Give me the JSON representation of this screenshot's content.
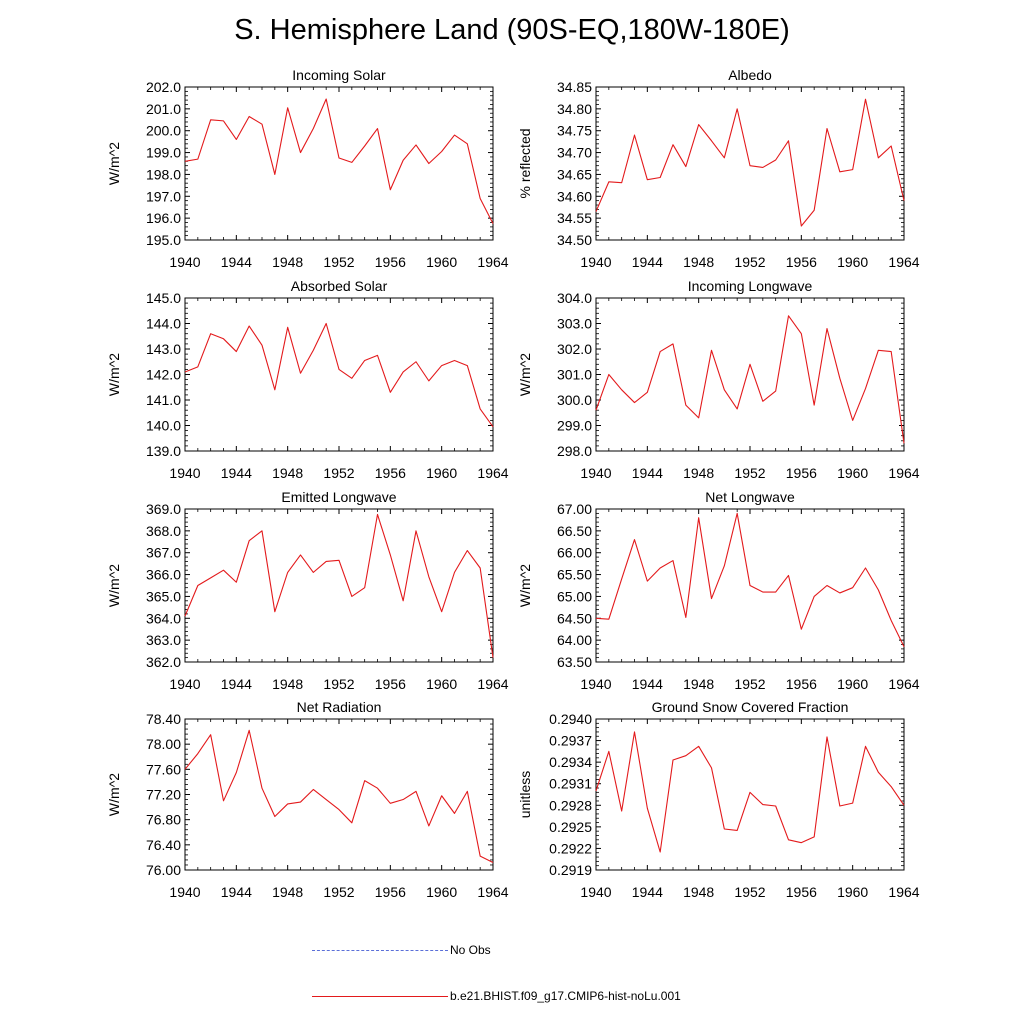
{
  "title": "S. Hemisphere Land (90S-EQ,180W-180E)",
  "legend": {
    "position": "bottom",
    "items": [
      {
        "label": "No Obs",
        "color": "#5a6fd8",
        "dash": "dashed"
      },
      {
        "label": "b.e21.BHIST.f09_g17.CMIP6-hist-noLu.001",
        "color": "#e31a1c",
        "dash": "solid"
      }
    ]
  },
  "chart_data": [
    {
      "type": "line",
      "title": "Incoming Solar",
      "ylabel": "W/m^2",
      "ylim": [
        195.0,
        202.0
      ],
      "yticks": [
        "195.0",
        "196.0",
        "197.0",
        "198.0",
        "199.0",
        "200.0",
        "201.0",
        "202.0"
      ],
      "xlim": [
        1940,
        1964
      ],
      "xticks": [
        "1940",
        "1944",
        "1948",
        "1952",
        "1956",
        "1960",
        "1964"
      ],
      "series": [
        {
          "color": "#e31a1c",
          "x": [
            1940,
            1941,
            1942,
            1943,
            1944,
            1945,
            1946,
            1947,
            1948,
            1949,
            1950,
            1951,
            1952,
            1953,
            1954,
            1955,
            1956,
            1957,
            1958,
            1959,
            1960,
            1961,
            1962,
            1963,
            1964
          ],
          "values": [
            198.6,
            198.7,
            200.5,
            200.45,
            199.6,
            200.65,
            200.3,
            198.0,
            201.05,
            199.0,
            200.1,
            201.45,
            198.75,
            198.55,
            199.3,
            200.1,
            197.3,
            198.65,
            199.35,
            198.5,
            199.05,
            199.8,
            199.4,
            196.9,
            195.75
          ]
        }
      ]
    },
    {
      "type": "line",
      "title": "Albedo",
      "ylabel": "% reflected",
      "ylim": [
        34.5,
        34.85
      ],
      "yticks": [
        "34.50",
        "34.55",
        "34.60",
        "34.65",
        "34.70",
        "34.75",
        "34.80",
        "34.85"
      ],
      "xlim": [
        1940,
        1964
      ],
      "xticks": [
        "1940",
        "1944",
        "1948",
        "1952",
        "1956",
        "1960",
        "1964"
      ],
      "series": [
        {
          "color": "#e31a1c",
          "x": [
            1940,
            1941,
            1942,
            1943,
            1944,
            1945,
            1946,
            1947,
            1948,
            1949,
            1950,
            1951,
            1952,
            1953,
            1954,
            1955,
            1956,
            1957,
            1958,
            1959,
            1960,
            1961,
            1962,
            1963,
            1964
          ],
          "values": [
            34.565,
            34.633,
            34.631,
            34.74,
            34.638,
            34.643,
            34.718,
            34.668,
            34.764,
            34.727,
            34.688,
            34.8,
            34.67,
            34.666,
            34.683,
            34.727,
            34.532,
            34.568,
            34.755,
            34.656,
            34.661,
            34.822,
            34.688,
            34.715,
            34.59
          ]
        }
      ]
    },
    {
      "type": "line",
      "title": "Absorbed Solar",
      "ylabel": "W/m^2",
      "ylim": [
        139.0,
        145.0
      ],
      "yticks": [
        "139.0",
        "140.0",
        "141.0",
        "142.0",
        "143.0",
        "144.0",
        "145.0"
      ],
      "xlim": [
        1940,
        1964
      ],
      "xticks": [
        "1940",
        "1944",
        "1948",
        "1952",
        "1956",
        "1960",
        "1964"
      ],
      "series": [
        {
          "color": "#e31a1c",
          "x": [
            1940,
            1941,
            1942,
            1943,
            1944,
            1945,
            1946,
            1947,
            1948,
            1949,
            1950,
            1951,
            1952,
            1953,
            1954,
            1955,
            1956,
            1957,
            1958,
            1959,
            1960,
            1961,
            1962,
            1963,
            1964
          ],
          "values": [
            142.1,
            142.3,
            143.6,
            143.4,
            142.9,
            143.9,
            143.15,
            141.4,
            143.85,
            142.05,
            142.95,
            144.0,
            142.2,
            141.85,
            142.55,
            142.75,
            141.3,
            142.1,
            142.5,
            141.75,
            142.35,
            142.55,
            142.35,
            140.65,
            139.95
          ]
        }
      ]
    },
    {
      "type": "line",
      "title": "Incoming Longwave",
      "ylabel": "W/m^2",
      "ylim": [
        298.0,
        304.0
      ],
      "yticks": [
        "298.0",
        "299.0",
        "300.0",
        "301.0",
        "302.0",
        "303.0",
        "304.0"
      ],
      "xlim": [
        1940,
        1964
      ],
      "xticks": [
        "1940",
        "1944",
        "1948",
        "1952",
        "1956",
        "1960",
        "1964"
      ],
      "series": [
        {
          "color": "#e31a1c",
          "x": [
            1940,
            1941,
            1942,
            1943,
            1944,
            1945,
            1946,
            1947,
            1948,
            1949,
            1950,
            1951,
            1952,
            1953,
            1954,
            1955,
            1956,
            1957,
            1958,
            1959,
            1960,
            1961,
            1962,
            1963,
            1964
          ],
          "values": [
            299.6,
            301.0,
            300.4,
            299.9,
            300.3,
            301.9,
            302.2,
            299.8,
            299.3,
            301.95,
            300.4,
            299.65,
            301.4,
            299.95,
            300.35,
            303.3,
            302.6,
            299.8,
            302.8,
            300.85,
            299.2,
            300.45,
            301.95,
            301.9,
            298.3
          ]
        }
      ]
    },
    {
      "type": "line",
      "title": "Emitted Longwave",
      "ylabel": "W/m^2",
      "ylim": [
        362.0,
        369.0
      ],
      "yticks": [
        "362.0",
        "363.0",
        "364.0",
        "365.0",
        "366.0",
        "367.0",
        "368.0",
        "369.0"
      ],
      "xlim": [
        1940,
        1964
      ],
      "xticks": [
        "1940",
        "1944",
        "1948",
        "1952",
        "1956",
        "1960",
        "1964"
      ],
      "series": [
        {
          "color": "#e31a1c",
          "x": [
            1940,
            1941,
            1942,
            1943,
            1944,
            1945,
            1946,
            1947,
            1948,
            1949,
            1950,
            1951,
            1952,
            1953,
            1954,
            1955,
            1956,
            1957,
            1958,
            1959,
            1960,
            1961,
            1962,
            1963,
            1964
          ],
          "values": [
            364.1,
            365.5,
            365.85,
            366.2,
            365.65,
            367.55,
            368.0,
            364.3,
            366.1,
            366.9,
            366.1,
            366.6,
            366.65,
            365.0,
            365.4,
            368.75,
            366.9,
            364.8,
            368.0,
            365.9,
            364.3,
            366.1,
            367.1,
            366.3,
            362.2
          ]
        }
      ]
    },
    {
      "type": "line",
      "title": "Net Longwave",
      "ylabel": "W/m^2",
      "ylim": [
        63.5,
        67.0
      ],
      "yticks": [
        "63.50",
        "64.00",
        "64.50",
        "65.00",
        "65.50",
        "66.00",
        "66.50",
        "67.00"
      ],
      "xlim": [
        1940,
        1964
      ],
      "xticks": [
        "1940",
        "1944",
        "1948",
        "1952",
        "1956",
        "1960",
        "1964"
      ],
      "series": [
        {
          "color": "#e31a1c",
          "x": [
            1940,
            1941,
            1942,
            1943,
            1944,
            1945,
            1946,
            1947,
            1948,
            1949,
            1950,
            1951,
            1952,
            1953,
            1954,
            1955,
            1956,
            1957,
            1958,
            1959,
            1960,
            1961,
            1962,
            1963,
            1964
          ],
          "values": [
            64.5,
            64.48,
            65.4,
            66.3,
            65.35,
            65.65,
            65.82,
            64.52,
            66.8,
            64.95,
            65.7,
            66.9,
            65.25,
            65.1,
            65.1,
            65.48,
            64.25,
            65.0,
            65.25,
            65.08,
            65.2,
            65.65,
            65.15,
            64.45,
            63.85
          ]
        }
      ]
    },
    {
      "type": "line",
      "title": "Net Radiation",
      "ylabel": "W/m^2",
      "ylim": [
        76.0,
        78.4
      ],
      "yticks": [
        "76.00",
        "76.40",
        "76.80",
        "77.20",
        "77.60",
        "78.00",
        "78.40"
      ],
      "xlim": [
        1940,
        1964
      ],
      "xticks": [
        "1940",
        "1944",
        "1948",
        "1952",
        "1956",
        "1960",
        "1964"
      ],
      "series": [
        {
          "color": "#e31a1c",
          "x": [
            1940,
            1941,
            1942,
            1943,
            1944,
            1945,
            1946,
            1947,
            1948,
            1949,
            1950,
            1951,
            1952,
            1953,
            1954,
            1955,
            1956,
            1957,
            1958,
            1959,
            1960,
            1961,
            1962,
            1963,
            1964
          ],
          "values": [
            77.6,
            77.85,
            78.15,
            77.1,
            77.55,
            78.22,
            77.3,
            76.85,
            77.05,
            77.08,
            77.28,
            77.12,
            76.96,
            76.75,
            77.42,
            77.3,
            77.06,
            77.12,
            77.25,
            76.7,
            77.18,
            76.9,
            77.25,
            76.22,
            76.12
          ]
        }
      ]
    },
    {
      "type": "line",
      "title": "Ground Snow Covered Fraction",
      "ylabel": "unitless",
      "ylim": [
        0.2919,
        0.294
      ],
      "yticks": [
        "0.2919",
        "0.2922",
        "0.2925",
        "0.2928",
        "0.2931",
        "0.2934",
        "0.2937",
        "0.2940"
      ],
      "xlim": [
        1940,
        1964
      ],
      "xticks": [
        "1940",
        "1944",
        "1948",
        "1952",
        "1956",
        "1960",
        "1964"
      ],
      "series": [
        {
          "color": "#e31a1c",
          "x": [
            1940,
            1941,
            1942,
            1943,
            1944,
            1945,
            1946,
            1947,
            1948,
            1949,
            1950,
            1951,
            1952,
            1953,
            1954,
            1955,
            1956,
            1957,
            1958,
            1959,
            1960,
            1961,
            1962,
            1963,
            1964
          ],
          "values": [
            0.293,
            0.29355,
            0.29272,
            0.29382,
            0.29276,
            0.29215,
            0.29343,
            0.29349,
            0.29362,
            0.29332,
            0.29247,
            0.29245,
            0.29298,
            0.29281,
            0.29279,
            0.29232,
            0.29228,
            0.29236,
            0.29375,
            0.29279,
            0.29283,
            0.29362,
            0.29326,
            0.29306,
            0.2928
          ]
        }
      ]
    }
  ]
}
